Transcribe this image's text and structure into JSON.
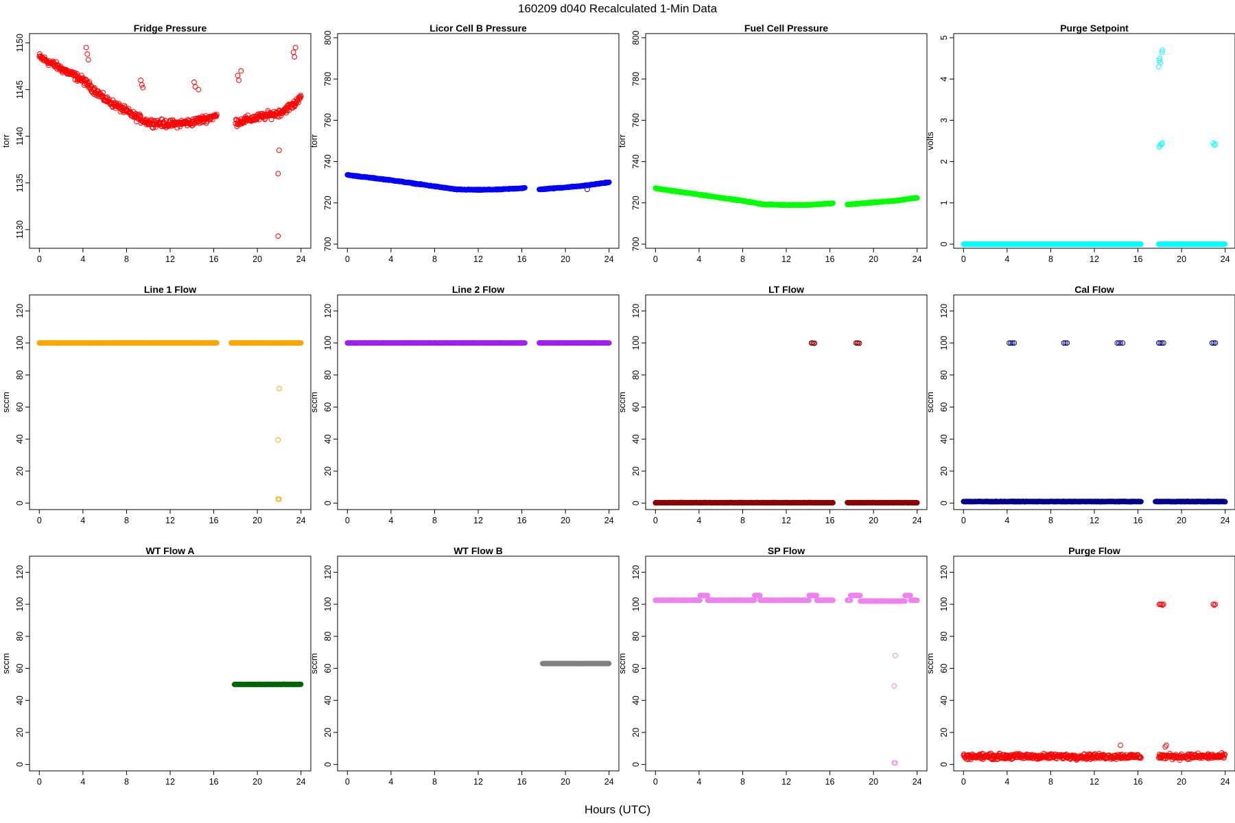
{
  "figure": {
    "title": "160209   d040   Recalculated 1-Min Data",
    "xlabel": "Hours (UTC)"
  },
  "chart_data": [
    {
      "type": "scatter",
      "title": "Fridge Pressure",
      "ylabel": "torr",
      "color": "#ff0000",
      "xlim": [
        0,
        24
      ],
      "ylim": [
        1128,
        1151
      ],
      "xticks": [
        0,
        4,
        8,
        12,
        16,
        20,
        24
      ],
      "yticks": [
        1130,
        1135,
        1140,
        1145,
        1150
      ],
      "segments": [
        {
          "x": [
            0,
            4,
            6,
            9,
            10,
            12,
            14,
            16.3
          ],
          "y": [
            1148.5,
            1146,
            1144,
            1142,
            1141.5,
            1141.3,
            1141.5,
            1142.2
          ],
          "jitter": 0.6
        },
        {
          "x": [
            18,
            20,
            22,
            23.5,
            24
          ],
          "y": [
            1141.5,
            1142,
            1142.5,
            1143.5,
            1144.5
          ],
          "jitter": 0.6
        }
      ],
      "points": [
        {
          "x": 4.3,
          "y": 1149.5
        },
        {
          "x": 4.4,
          "y": 1148.8
        },
        {
          "x": 4.5,
          "y": 1148.2
        },
        {
          "x": 9.3,
          "y": 1146
        },
        {
          "x": 9.4,
          "y": 1145.5
        },
        {
          "x": 9.5,
          "y": 1145.2
        },
        {
          "x": 14.2,
          "y": 1145.8
        },
        {
          "x": 14.3,
          "y": 1145.3
        },
        {
          "x": 14.6,
          "y": 1145
        },
        {
          "x": 18.2,
          "y": 1146.5
        },
        {
          "x": 18.3,
          "y": 1146
        },
        {
          "x": 18.5,
          "y": 1147
        },
        {
          "x": 22.0,
          "y": 1138.5
        },
        {
          "x": 21.9,
          "y": 1136
        },
        {
          "x": 21.9,
          "y": 1129.3
        },
        {
          "x": 23.3,
          "y": 1149
        },
        {
          "x": 23.4,
          "y": 1148.5
        },
        {
          "x": 23.5,
          "y": 1149.5
        }
      ]
    },
    {
      "type": "scatter",
      "title": "Licor Cell B Pressure",
      "ylabel": "torr",
      "color": "#0000ff",
      "xlim": [
        0,
        24
      ],
      "ylim": [
        698,
        802
      ],
      "xticks": [
        0,
        4,
        8,
        12,
        16,
        20,
        24
      ],
      "yticks": [
        700,
        720,
        740,
        760,
        780,
        800
      ],
      "segments": [
        {
          "x": [
            0,
            4,
            8,
            10,
            12,
            14,
            16.3
          ],
          "y": [
            733.5,
            731,
            728,
            726.5,
            726.3,
            726.5,
            727.2
          ],
          "jitter": 0.3
        },
        {
          "x": [
            17.6,
            20,
            22,
            24
          ],
          "y": [
            726.5,
            727.5,
            728.5,
            730
          ],
          "jitter": 0.3
        }
      ],
      "points": [
        {
          "x": 22.0,
          "y": 726.5
        }
      ]
    },
    {
      "type": "scatter",
      "title": "Fuel Cell Pressure",
      "ylabel": "torr",
      "color": "#00ff00",
      "xlim": [
        0,
        24
      ],
      "ylim": [
        698,
        802
      ],
      "xticks": [
        0,
        4,
        8,
        12,
        16,
        20,
        24
      ],
      "yticks": [
        700,
        720,
        740,
        760,
        780,
        800
      ],
      "segments": [
        {
          "x": [
            0,
            4,
            8,
            10,
            12,
            14,
            16.3
          ],
          "y": [
            727,
            724,
            721,
            719.2,
            719,
            719,
            719.8
          ],
          "jitter": 0.3
        },
        {
          "x": [
            17.6,
            20,
            22,
            24
          ],
          "y": [
            719.2,
            720.2,
            721,
            722.5
          ],
          "jitter": 0.3
        }
      ],
      "points": []
    },
    {
      "type": "scatter",
      "title": "Purge Setpoint",
      "ylabel": "volts",
      "color": "#00ffff",
      "xlim": [
        0,
        24
      ],
      "ylim": [
        -0.1,
        5.1
      ],
      "xticks": [
        0,
        4,
        8,
        12,
        16,
        20,
        24
      ],
      "yticks": [
        0,
        1,
        2,
        3,
        4,
        5
      ],
      "segments": [
        {
          "x": [
            0,
            16.3
          ],
          "y": [
            0,
            0
          ],
          "jitter": 0
        },
        {
          "x": [
            17.9,
            24
          ],
          "y": [
            0,
            0
          ],
          "jitter": 0
        }
      ],
      "points": [
        {
          "x": 17.9,
          "y": 4.3
        },
        {
          "x": 17.95,
          "y": 4.45
        },
        {
          "x": 18.0,
          "y": 4.5
        },
        {
          "x": 18.05,
          "y": 4.4
        },
        {
          "x": 18.2,
          "y": 4.65
        },
        {
          "x": 18.25,
          "y": 4.7
        },
        {
          "x": 17.95,
          "y": 2.35
        },
        {
          "x": 18.05,
          "y": 2.4
        },
        {
          "x": 18.15,
          "y": 2.42
        },
        {
          "x": 18.25,
          "y": 2.45
        },
        {
          "x": 22.9,
          "y": 2.45
        },
        {
          "x": 23.0,
          "y": 2.4
        },
        {
          "x": 23.1,
          "y": 2.42
        }
      ]
    },
    {
      "type": "scatter",
      "title": "Line 1 Flow",
      "ylabel": "sccm",
      "color": "#ffa500",
      "xlim": [
        0,
        24
      ],
      "ylim": [
        -4,
        130
      ],
      "xticks": [
        0,
        4,
        8,
        12,
        16,
        20,
        24
      ],
      "yticks": [
        0,
        20,
        40,
        60,
        80,
        100,
        120
      ],
      "segments": [
        {
          "x": [
            0,
            16.3
          ],
          "y": [
            100,
            100
          ],
          "jitter": 0.1
        },
        {
          "x": [
            17.6,
            24
          ],
          "y": [
            100,
            100
          ],
          "jitter": 0.1
        }
      ],
      "points": [
        {
          "x": 22.0,
          "y": 71.5
        },
        {
          "x": 21.9,
          "y": 39.5
        },
        {
          "x": 21.9,
          "y": 2.5
        },
        {
          "x": 22.0,
          "y": 2.5
        }
      ]
    },
    {
      "type": "scatter",
      "title": "Line 2 Flow",
      "ylabel": "sccm",
      "color": "#a020f0",
      "xlim": [
        0,
        24
      ],
      "ylim": [
        -4,
        130
      ],
      "xticks": [
        0,
        4,
        8,
        12,
        16,
        20,
        24
      ],
      "yticks": [
        0,
        20,
        40,
        60,
        80,
        100,
        120
      ],
      "segments": [
        {
          "x": [
            0,
            16.3
          ],
          "y": [
            100,
            100
          ],
          "jitter": 0.1
        },
        {
          "x": [
            17.6,
            24
          ],
          "y": [
            100,
            100
          ],
          "jitter": 0.1
        }
      ],
      "points": []
    },
    {
      "type": "scatter",
      "title": "LT Flow",
      "ylabel": "sccm",
      "color": "#8b0000",
      "xlim": [
        0,
        24
      ],
      "ylim": [
        -4,
        130
      ],
      "xticks": [
        0,
        4,
        8,
        12,
        16,
        20,
        24
      ],
      "yticks": [
        0,
        20,
        40,
        60,
        80,
        100,
        120
      ],
      "segments": [
        {
          "x": [
            0,
            16.3
          ],
          "y": [
            0.3,
            0.3
          ],
          "jitter": 0.2
        },
        {
          "x": [
            17.6,
            24
          ],
          "y": [
            0.3,
            0.3
          ],
          "jitter": 0.2
        }
      ],
      "points": [
        {
          "x": 14.3,
          "y": 100
        },
        {
          "x": 14.4,
          "y": 100
        },
        {
          "x": 14.5,
          "y": 99.8
        },
        {
          "x": 14.6,
          "y": 99.8
        },
        {
          "x": 18.4,
          "y": 100
        },
        {
          "x": 18.5,
          "y": 100
        },
        {
          "x": 18.6,
          "y": 100
        },
        {
          "x": 18.7,
          "y": 99.8
        }
      ]
    },
    {
      "type": "scatter",
      "title": "Cal Flow",
      "ylabel": "sccm",
      "color": "#00008b",
      "xlim": [
        0,
        24
      ],
      "ylim": [
        -4,
        130
      ],
      "xticks": [
        0,
        4,
        8,
        12,
        16,
        20,
        24
      ],
      "yticks": [
        0,
        20,
        40,
        60,
        80,
        100,
        120
      ],
      "segments": [
        {
          "x": [
            0,
            16.3
          ],
          "y": [
            1,
            1
          ],
          "jitter": 0.2
        },
        {
          "x": [
            17.6,
            24
          ],
          "y": [
            1,
            1
          ],
          "jitter": 0.2
        }
      ],
      "points": [
        {
          "x": 4.2,
          "y": 100
        },
        {
          "x": 4.35,
          "y": 100
        },
        {
          "x": 4.5,
          "y": 100
        },
        {
          "x": 4.65,
          "y": 100
        },
        {
          "x": 9.2,
          "y": 100
        },
        {
          "x": 9.35,
          "y": 100
        },
        {
          "x": 9.5,
          "y": 100
        },
        {
          "x": 14.1,
          "y": 100
        },
        {
          "x": 14.25,
          "y": 100
        },
        {
          "x": 14.4,
          "y": 100
        },
        {
          "x": 14.6,
          "y": 100
        },
        {
          "x": 17.9,
          "y": 100
        },
        {
          "x": 18.05,
          "y": 100
        },
        {
          "x": 18.2,
          "y": 100
        },
        {
          "x": 18.35,
          "y": 100
        },
        {
          "x": 22.8,
          "y": 100
        },
        {
          "x": 22.95,
          "y": 100
        },
        {
          "x": 23.1,
          "y": 100
        }
      ]
    },
    {
      "type": "scatter",
      "title": "WT Flow A",
      "ylabel": "sccm",
      "color": "#006400",
      "xlim": [
        0,
        24
      ],
      "ylim": [
        -4,
        130
      ],
      "xticks": [
        0,
        4,
        8,
        12,
        16,
        20,
        24
      ],
      "yticks": [
        0,
        20,
        40,
        60,
        80,
        100,
        120
      ],
      "segments": [
        {
          "x": [
            17.9,
            24
          ],
          "y": [
            50,
            50
          ],
          "jitter": 0.1
        }
      ],
      "points": []
    },
    {
      "type": "scatter",
      "title": "WT Flow B",
      "ylabel": "sccm",
      "color": "#808080",
      "xlim": [
        0,
        24
      ],
      "ylim": [
        -4,
        130
      ],
      "xticks": [
        0,
        4,
        8,
        12,
        16,
        20,
        24
      ],
      "yticks": [
        0,
        20,
        40,
        60,
        80,
        100,
        120
      ],
      "segments": [
        {
          "x": [
            17.9,
            24
          ],
          "y": [
            63,
            63
          ],
          "jitter": 0.1
        }
      ],
      "points": []
    },
    {
      "type": "scatter",
      "title": "SP Flow",
      "ylabel": "sccm",
      "color": "#ee82ee",
      "xlim": [
        0,
        24
      ],
      "ylim": [
        -4,
        130
      ],
      "xticks": [
        0,
        4,
        8,
        12,
        16,
        20,
        24
      ],
      "yticks": [
        0,
        20,
        40,
        60,
        80,
        100,
        120
      ],
      "segments": [
        {
          "x": [
            0,
            4.1
          ],
          "y": [
            102.5,
            102.5
          ],
          "jitter": 0.15
        },
        {
          "x": [
            4.1,
            4.8
          ],
          "y": [
            105.5,
            105.5
          ],
          "jitter": 0.15
        },
        {
          "x": [
            4.8,
            9.1
          ],
          "y": [
            102.5,
            102.5
          ],
          "jitter": 0.15
        },
        {
          "x": [
            9.1,
            9.6
          ],
          "y": [
            105.5,
            105.5
          ],
          "jitter": 0.15
        },
        {
          "x": [
            9.6,
            14.1
          ],
          "y": [
            102.5,
            102.5
          ],
          "jitter": 0.15
        },
        {
          "x": [
            14.1,
            14.8
          ],
          "y": [
            105.5,
            105.5
          ],
          "jitter": 0.15
        },
        {
          "x": [
            14.8,
            16.3
          ],
          "y": [
            102.5,
            102.5
          ],
          "jitter": 0.15
        },
        {
          "x": [
            17.6,
            17.9
          ],
          "y": [
            102.5,
            102.5
          ],
          "jitter": 0.15
        },
        {
          "x": [
            17.9,
            18.8
          ],
          "y": [
            105.5,
            105.5
          ],
          "jitter": 0.15
        },
        {
          "x": [
            18.8,
            22.9
          ],
          "y": [
            102,
            102
          ],
          "jitter": 0.15
        },
        {
          "x": [
            22.9,
            23.4
          ],
          "y": [
            105.5,
            105.5
          ],
          "jitter": 0.15
        },
        {
          "x": [
            23.4,
            24
          ],
          "y": [
            102.5,
            102.5
          ],
          "jitter": 0.15
        }
      ],
      "points": [
        {
          "x": 22.0,
          "y": 68
        },
        {
          "x": 21.9,
          "y": 49
        },
        {
          "x": 21.9,
          "y": 1
        },
        {
          "x": 22.0,
          "y": 1
        }
      ]
    },
    {
      "type": "scatter",
      "title": "Purge Flow",
      "ylabel": "sccm",
      "color": "#ff0000",
      "xlim": [
        0,
        24
      ],
      "ylim": [
        -4,
        130
      ],
      "xticks": [
        0,
        4,
        8,
        12,
        16,
        20,
        24
      ],
      "yticks": [
        0,
        20,
        40,
        60,
        80,
        100,
        120
      ],
      "segments": [
        {
          "x": [
            0,
            16.3
          ],
          "y": [
            5,
            5
          ],
          "jitter": 2.5
        },
        {
          "x": [
            17.9,
            24
          ],
          "y": [
            5,
            5
          ],
          "jitter": 2.5
        }
      ],
      "points": [
        {
          "x": 14.4,
          "y": 12
        },
        {
          "x": 18.5,
          "y": 11
        },
        {
          "x": 18.6,
          "y": 12
        },
        {
          "x": 17.95,
          "y": 100
        },
        {
          "x": 18.05,
          "y": 100
        },
        {
          "x": 18.15,
          "y": 100
        },
        {
          "x": 18.25,
          "y": 99.5
        },
        {
          "x": 18.35,
          "y": 100
        },
        {
          "x": 22.9,
          "y": 100
        },
        {
          "x": 23.0,
          "y": 99.5
        },
        {
          "x": 23.1,
          "y": 100
        }
      ]
    }
  ]
}
